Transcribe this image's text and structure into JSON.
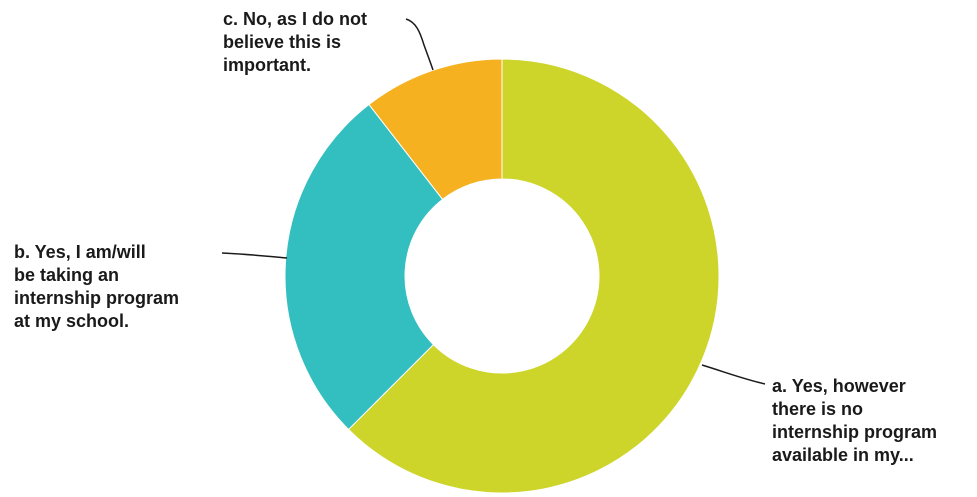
{
  "chart_data": {
    "type": "pie",
    "variant": "donut",
    "title": "",
    "legend": "none",
    "slices": [
      {
        "label_lines": [
          "a. Yes, however",
          "there is no",
          "internship program",
          "available in my..."
        ],
        "value": 62.5,
        "color": "#CDD52A"
      },
      {
        "label_lines": [
          "b. Yes, I am/will",
          "be taking an",
          "internship program",
          "at my school."
        ],
        "value": 27,
        "color": "#33BEBF"
      },
      {
        "label_lines": [
          "c. No, as I do not",
          "believe this is",
          "important."
        ],
        "value": 10.5,
        "color": "#F5B120"
      }
    ]
  }
}
